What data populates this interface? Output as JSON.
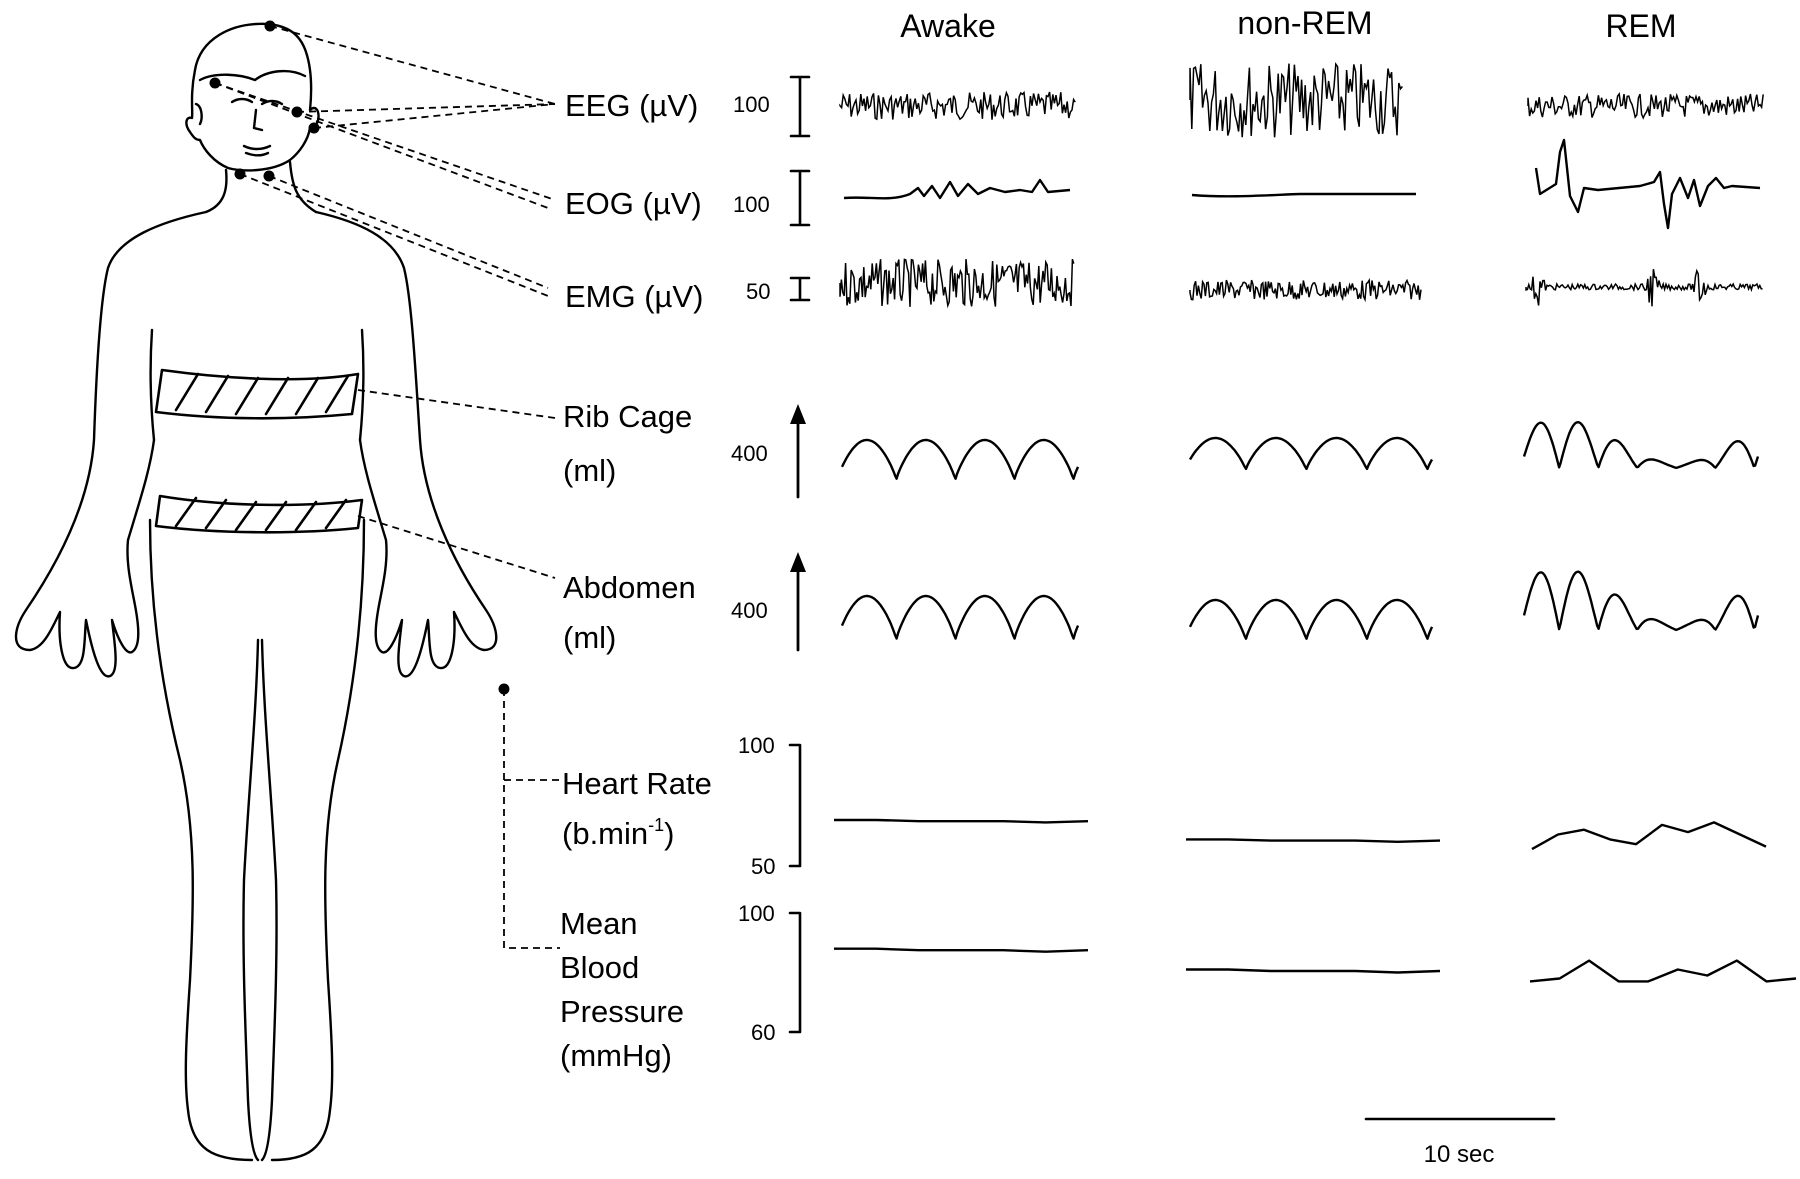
{
  "columns": [
    "Awake",
    "non-REM",
    "REM"
  ],
  "channels": [
    {
      "id": "eeg",
      "label_lines": [
        "EEG (µV)"
      ],
      "scale": "100",
      "scale_type": "calibration-bar"
    },
    {
      "id": "eog",
      "label_lines": [
        "EOG (µV)"
      ],
      "scale": "100",
      "scale_type": "calibration-bar"
    },
    {
      "id": "emg",
      "label_lines": [
        "EMG (µV)"
      ],
      "scale": "50",
      "scale_type": "calibration-bar"
    },
    {
      "id": "rib",
      "label_lines": [
        "Rib Cage",
        "(ml)"
      ],
      "scale": "400",
      "scale_type": "arrow"
    },
    {
      "id": "abd",
      "label_lines": [
        "Abdomen",
        "(ml)"
      ],
      "scale": "400",
      "scale_type": "arrow"
    },
    {
      "id": "hr",
      "label_lines": [
        "Heart Rate",
        "(b.min-1)"
      ],
      "label_base": "(b.min",
      "label_sup": "-1",
      "label_close": ")",
      "axis_top": "100",
      "axis_bottom": "50"
    },
    {
      "id": "bp",
      "label_lines": [
        "Mean",
        "Blood",
        "Pressure",
        "(mmHg)"
      ],
      "axis_top": "100",
      "axis_bottom": "60"
    }
  ],
  "time_scale": "10 sec",
  "traces": {
    "hr": {
      "Awake": [
        69,
        69,
        68.5,
        68.5,
        68.5,
        68,
        68.5
      ],
      "non-REM": [
        61,
        61,
        60.5,
        60.5,
        60.5,
        60,
        60.5
      ],
      "REM": [
        57,
        63,
        65,
        61,
        59,
        67,
        64,
        68,
        63,
        58
      ]
    },
    "bp": {
      "Awake": [
        88,
        88,
        87.5,
        87.5,
        87.5,
        87,
        87.5
      ],
      "non-REM": [
        81,
        81,
        80.5,
        80.5,
        80.5,
        80,
        80.5
      ],
      "REM": [
        77,
        78,
        84,
        77,
        77,
        81,
        79,
        84,
        77,
        78
      ]
    }
  },
  "colors": {
    "ink": "#000000",
    "background": "#ffffff"
  },
  "icons": [
    "human-body-outline",
    "chest-band",
    "abdomen-band",
    "electrode"
  ]
}
